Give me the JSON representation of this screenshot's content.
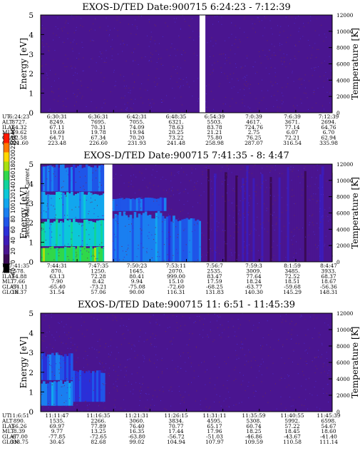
{
  "colorbar": {
    "title": "Second Harmonic Current",
    "ticks": [
      "-40",
      "0",
      "20",
      "40",
      "60",
      "80",
      "100",
      "120",
      "140",
      "160",
      "180",
      "200",
      "220",
      "240"
    ],
    "colors": [
      "#000000",
      "#3a0a55",
      "#4a1590",
      "#3d1bb8",
      "#2a2fd8",
      "#1f55e8",
      "#1a7ff0",
      "#12a6ee",
      "#0cc8d8",
      "#10d49c",
      "#30d84a",
      "#a8e010",
      "#ffd800",
      "#ff7800",
      "#ff1800"
    ]
  },
  "chart_data": [
    {
      "type": "heatmap",
      "title": "EXOS-D/TED   Date:900715   6:24:23 - 7:12:39",
      "ylabel": "Energy [eV]",
      "y2label": "Temperature [K]",
      "ylim": [
        0,
        5
      ],
      "yticks": [
        "0",
        "1",
        "2",
        "3",
        "4",
        "5"
      ],
      "y2lim": [
        0,
        12000
      ],
      "y2ticks": [
        "0",
        "2000",
        "4000",
        "6000",
        "8000",
        "10000",
        "12000"
      ],
      "data_gaps": [
        [
          0.545,
          0.565
        ]
      ],
      "intensity_profile": [
        {
          "x_from": 0.0,
          "x_to": 1.0,
          "e_from": 0.0,
          "e_to": 5.0,
          "level": 2
        }
      ],
      "x_table": {
        "labels": [
          "UT",
          "ALT",
          "ILAT",
          "MLT",
          "GLAT",
          "GLON"
        ],
        "columns": [
          [
            "6:24:23",
            "8727.",
            "64.32",
            "19.62",
            "62.58",
            "221.60"
          ],
          [
            "6:30:31",
            "8249.",
            "67.11",
            "19.69",
            "64.71",
            "223.48"
          ],
          [
            "6:36:31",
            "7695.",
            "70.31",
            "19.78",
            "67.34",
            "226.60"
          ],
          [
            "6:42:31",
            "7055.",
            "74.09",
            "19.94",
            "70.20",
            "231.93"
          ],
          [
            "6:48:35",
            "6321.",
            "78.63",
            "20.25",
            "73.22",
            "241.48"
          ],
          [
            "6:54:39",
            "5503.",
            "83.78",
            "21.21",
            "75.80",
            "258.98"
          ],
          [
            "7:0:39",
            "4617.",
            "724.76",
            "2.75",
            "76.25",
            "287.07"
          ],
          [
            "7:6:39",
            "3671.",
            "77.14",
            "6.07",
            "72.21",
            "316.54"
          ],
          [
            "7:12:39",
            "2694.",
            "64.76",
            "6.70",
            "62.94",
            "335.98"
          ]
        ]
      }
    },
    {
      "type": "heatmap",
      "title": "EXOS-D/TED   Date:900715   7:41:35 - 8: 4:47",
      "ylabel": "Energy [eV]",
      "y2label": "Temperature [K]",
      "ylim": [
        0,
        5
      ],
      "yticks": [
        "0",
        "1",
        "2",
        "3",
        "4",
        "5"
      ],
      "y2lim": [
        0,
        12000
      ],
      "y2ticks": [
        "0",
        "2000",
        "4000",
        "6000",
        "8000",
        "10000",
        "12000"
      ],
      "data_gaps": [
        [
          0.218,
          0.246
        ]
      ],
      "intensity_profile": [
        {
          "x_from": 0.0,
          "x_to": 0.22,
          "e_from": 0.0,
          "e_to": 0.8,
          "level": 10
        },
        {
          "x_from": 0.0,
          "x_to": 0.22,
          "e_from": 0.8,
          "e_to": 2.2,
          "level": 8
        },
        {
          "x_from": 0.0,
          "x_to": 0.22,
          "e_from": 2.2,
          "e_to": 3.6,
          "level": 7
        },
        {
          "x_from": 0.0,
          "x_to": 0.22,
          "e_from": 3.6,
          "e_to": 5.0,
          "level": 5
        },
        {
          "x_from": 0.246,
          "x_to": 0.43,
          "e_from": 0.0,
          "e_to": 2.6,
          "level": 6
        },
        {
          "x_from": 0.246,
          "x_to": 0.43,
          "e_from": 2.6,
          "e_to": 3.3,
          "level": 5
        },
        {
          "x_from": 0.43,
          "x_to": 0.55,
          "e_from": 0.0,
          "e_to": 2.4,
          "level": 5
        },
        {
          "x_from": 0.55,
          "x_to": 1.0,
          "e_from": 0.0,
          "e_to": 5.0,
          "level": 2
        }
      ],
      "x_table": {
        "labels": [
          "UT",
          "ALT",
          "ILAT",
          "MLT",
          "GLAT",
          "GLON"
        ],
        "columns": [
          [
            "7:41:35",
            "578.",
            "54.88",
            "7.66",
            "-54.11",
            "18.37"
          ],
          [
            "7:44:31",
            "870.",
            "63.13",
            "7.90",
            "-65.40",
            "31.54"
          ],
          [
            "7:47:35",
            "1250.",
            "72.28",
            "8.42",
            "-73.21",
            "57.06"
          ],
          [
            "7:50:23",
            "1645.",
            "80.41",
            "9.94",
            "-75.08",
            "90.00"
          ],
          [
            "7:53:11",
            "2070.",
            "999.00",
            "15.10",
            "-72.60",
            "116.31"
          ],
          [
            "7:56:7",
            "2535.",
            "83.47",
            "17.59",
            "-68.25",
            "131.83"
          ],
          [
            "7:59:3",
            "3009.",
            "77.64",
            "18.24",
            "-63.77",
            "140.30"
          ],
          [
            "8:1:59",
            "3485.",
            "72.52",
            "18.51",
            "-59.68",
            "145.29"
          ],
          [
            "8:4:47",
            "3933.",
            "68.37",
            "18.67",
            "-56.36",
            "148.31"
          ]
        ]
      }
    },
    {
      "type": "heatmap",
      "title": "EXOS-D/TED   Date:900715   11: 6:51 - 11:45:39",
      "ylabel": "Energy [eV]",
      "y2label": "Temperature [K]",
      "ylim": [
        0,
        5
      ],
      "yticks": [
        "0",
        "1",
        "2",
        "3",
        "4",
        "5"
      ],
      "y2lim": [
        0,
        12000
      ],
      "y2ticks": [
        "0",
        "2000",
        "4000",
        "6000",
        "8000",
        "10000",
        "12000"
      ],
      "data_gaps": [],
      "intensity_profile": [
        {
          "x_from": 0.0,
          "x_to": 0.11,
          "e_from": 0.3,
          "e_to": 1.6,
          "level": 6
        },
        {
          "x_from": 0.0,
          "x_to": 0.11,
          "e_from": 1.6,
          "e_to": 3.0,
          "level": 5
        },
        {
          "x_from": 0.11,
          "x_to": 0.22,
          "e_from": 0.5,
          "e_to": 2.2,
          "level": 4
        },
        {
          "x_from": 0.0,
          "x_to": 1.0,
          "e_from": 0.0,
          "e_to": 5.0,
          "level": 2
        }
      ],
      "x_table": {
        "labels": [
          "UT",
          "ALT",
          "ILAT",
          "MLT",
          "GLAT",
          "GLON"
        ],
        "columns": [
          [
            "11:6:51",
            "890.",
            "56.26",
            "8.39",
            "-67.00",
            "338.75"
          ],
          [
            "11:11:47",
            "1535.",
            "69.97",
            "9.77",
            "-77.85",
            "30.45"
          ],
          [
            "11:16:35",
            "2266.",
            "77.89",
            "13.25",
            "-72.65",
            "82.68"
          ],
          [
            "11:21:31",
            "3060.",
            "76.40",
            "16.35",
            "-63.80",
            "99.02"
          ],
          [
            "11:26:15",
            "3834.",
            "70.77",
            "17.44",
            "-56.72",
            "104.94"
          ],
          [
            "11:31:11",
            "4595.",
            "65.17",
            "17.96",
            "-51.03",
            "107.97"
          ],
          [
            "11:35:59",
            "5308.",
            "60.74",
            "18.25",
            "-46.86",
            "109.59"
          ],
          [
            "11:40:55",
            "5992.",
            "57.22",
            "18.45",
            "-43.67",
            "110.58"
          ],
          [
            "11:45:39",
            "6598.",
            "54.67",
            "18.60",
            "-41.40",
            "111.14"
          ]
        ]
      }
    }
  ]
}
